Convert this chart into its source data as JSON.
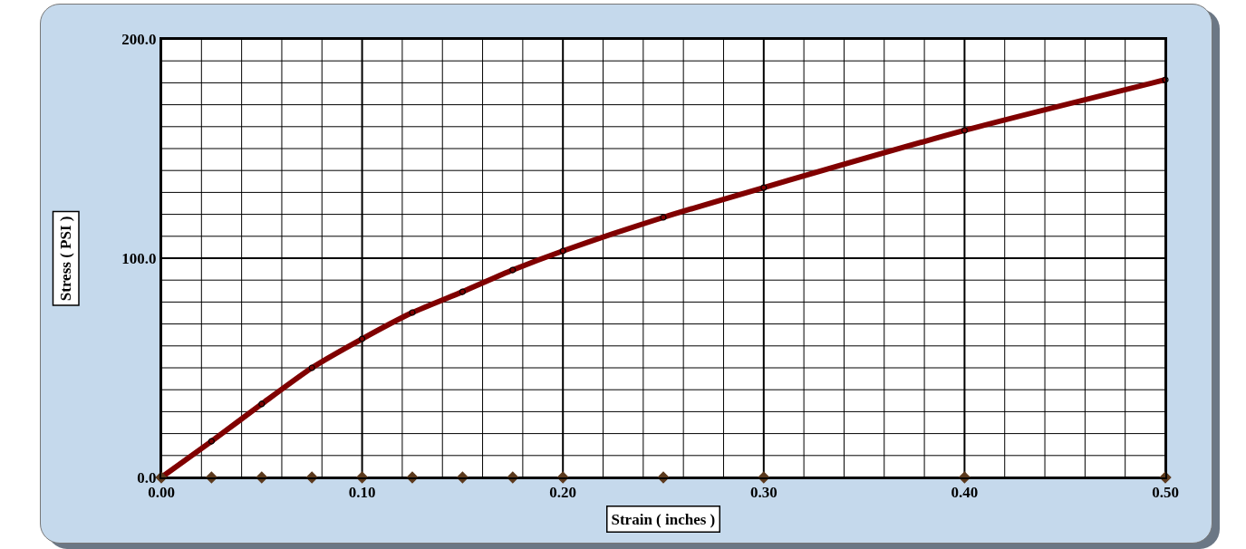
{
  "chart_data": {
    "type": "line",
    "xlabel": "Strain ( inches )",
    "ylabel": "Stress ( PSI )",
    "xlim": [
      0,
      0.5
    ],
    "ylim": [
      0,
      200
    ],
    "xticks": [
      {
        "value": 0,
        "label": "0.00"
      },
      {
        "value": 0.02,
        "label": null
      },
      {
        "value": 0.04,
        "label": null
      },
      {
        "value": 0.06,
        "label": null
      },
      {
        "value": 0.08,
        "label": null
      },
      {
        "value": 0.1,
        "label": "0.10"
      },
      {
        "value": 0.12,
        "label": null
      },
      {
        "value": 0.14,
        "label": null
      },
      {
        "value": 0.16,
        "label": null
      },
      {
        "value": 0.18,
        "label": null
      },
      {
        "value": 0.2,
        "label": "0.20"
      },
      {
        "value": 0.22,
        "label": null
      },
      {
        "value": 0.24,
        "label": null
      },
      {
        "value": 0.26,
        "label": null
      },
      {
        "value": 0.28,
        "label": null
      },
      {
        "value": 0.3,
        "label": "0.30"
      },
      {
        "value": 0.32,
        "label": null
      },
      {
        "value": 0.34,
        "label": null
      },
      {
        "value": 0.36,
        "label": null
      },
      {
        "value": 0.38,
        "label": null
      },
      {
        "value": 0.4,
        "label": "0.40"
      },
      {
        "value": 0.42,
        "label": null
      },
      {
        "value": 0.44,
        "label": null
      },
      {
        "value": 0.46,
        "label": null
      },
      {
        "value": 0.48,
        "label": null
      },
      {
        "value": 0.5,
        "label": "0.50"
      }
    ],
    "yticks": [
      {
        "value": 0,
        "label": "0.0"
      },
      {
        "value": 10,
        "label": null
      },
      {
        "value": 20,
        "label": null
      },
      {
        "value": 30,
        "label": null
      },
      {
        "value": 40,
        "label": null
      },
      {
        "value": 50,
        "label": null
      },
      {
        "value": 60,
        "label": null
      },
      {
        "value": 70,
        "label": null
      },
      {
        "value": 80,
        "label": null
      },
      {
        "value": 90,
        "label": null
      },
      {
        "value": 100,
        "label": "100.0"
      },
      {
        "value": 110,
        "label": null
      },
      {
        "value": 120,
        "label": null
      },
      {
        "value": 130,
        "label": null
      },
      {
        "value": 140,
        "label": null
      },
      {
        "value": 150,
        "label": null
      },
      {
        "value": 160,
        "label": null
      },
      {
        "value": 170,
        "label": null
      },
      {
        "value": 180,
        "label": null
      },
      {
        "value": 190,
        "label": null
      },
      {
        "value": 200,
        "label": "200.0"
      }
    ],
    "x": [
      0,
      0.025,
      0.05,
      0.075,
      0.1,
      0.125,
      0.15,
      0.175,
      0.2,
      0.25,
      0.3,
      0.4,
      0.5
    ],
    "series": [
      {
        "color": "#800000",
        "marker": "circle",
        "values": [
          0,
          16.5,
          33.5,
          50,
          63.2,
          75.2,
          84.7,
          94.6,
          103.3,
          118.6,
          132.2,
          158.3,
          181.4
        ]
      },
      {
        "type": "scatter",
        "color": "#5c3a1e",
        "marker": "diamond",
        "values": [
          0,
          0,
          0,
          0,
          0,
          0,
          0,
          0,
          0,
          0,
          0,
          0,
          0
        ]
      }
    ],
    "grid": true
  }
}
